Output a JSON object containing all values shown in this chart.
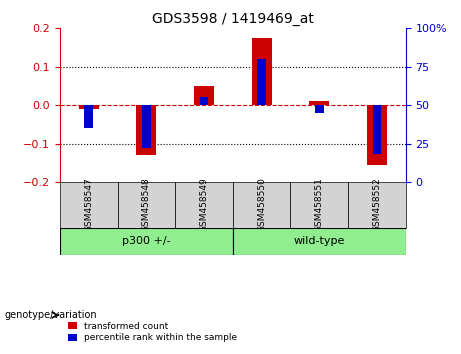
{
  "title": "GDS3598 / 1419469_at",
  "samples": [
    "GSM458547",
    "GSM458548",
    "GSM458549",
    "GSM458550",
    "GSM458551",
    "GSM458552"
  ],
  "red_values": [
    -0.01,
    -0.13,
    0.05,
    0.175,
    0.01,
    -0.155
  ],
  "blue_values_pct": [
    35,
    22,
    55,
    80,
    45,
    18
  ],
  "groups": [
    {
      "label": "p300 +/-",
      "indices": [
        0,
        1,
        2
      ],
      "color": "#90EE90"
    },
    {
      "label": "wild-type",
      "indices": [
        3,
        4,
        5
      ],
      "color": "#90EE90"
    }
  ],
  "group_bg_color": "#90EE90",
  "sample_bg_color": "#d3d3d3",
  "ylim_left": [
    -0.2,
    0.2
  ],
  "ylim_right": [
    0,
    100
  ],
  "yticks_left": [
    -0.2,
    -0.1,
    0.0,
    0.1,
    0.2
  ],
  "yticks_right": [
    0,
    25,
    50,
    75,
    100
  ],
  "red_color": "#cc0000",
  "blue_color": "#0000cc",
  "zero_line_color": "#cc0000",
  "bar_width": 0.35,
  "blue_bar_width": 0.15,
  "legend_red": "transformed count",
  "legend_blue": "percentile rank within the sample",
  "xlabel_group": "genotype/variation"
}
